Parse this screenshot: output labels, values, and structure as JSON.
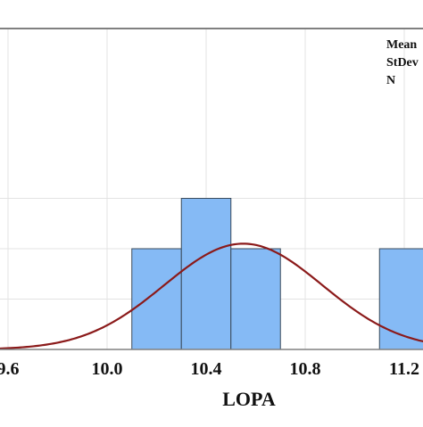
{
  "chart_data": {
    "type": "bar",
    "histogram": true,
    "xlabel": "LOPA",
    "ylabel": "",
    "title": "",
    "xlim": [
      9.6,
      11.3
    ],
    "ylim": [
      0,
      3.2
    ],
    "xticks": [
      {
        "value": 9.6,
        "label": "9.6"
      },
      {
        "value": 10.0,
        "label": "10.0"
      },
      {
        "value": 10.4,
        "label": "10.4"
      },
      {
        "value": 10.8,
        "label": "10.8"
      },
      {
        "value": 11.2,
        "label": "11.2"
      }
    ],
    "yticks": [
      1,
      2,
      3
    ],
    "grid": true,
    "bins": [
      {
        "start": 10.1,
        "end": 10.3,
        "count": 2
      },
      {
        "start": 10.3,
        "end": 10.5,
        "count": 3
      },
      {
        "start": 10.5,
        "end": 10.7,
        "count": 2
      },
      {
        "start": 10.7,
        "end": 10.9,
        "count": 0
      },
      {
        "start": 10.9,
        "end": 11.1,
        "count": 0
      },
      {
        "start": 11.1,
        "end": 11.3,
        "count": 2
      }
    ],
    "normal_curve": {
      "mean": 10.55,
      "stdev": 0.32,
      "peak": 2.1
    },
    "legend": {
      "placement": "top-right",
      "labels": [
        "Mean",
        "StDev",
        "N"
      ]
    },
    "colors": {
      "bar_fill": "#85baf5",
      "bar_stroke": "#3a4a5a",
      "curve": "#8b1a1a",
      "grid": "#e3e3e3",
      "frame": "#808080"
    }
  }
}
